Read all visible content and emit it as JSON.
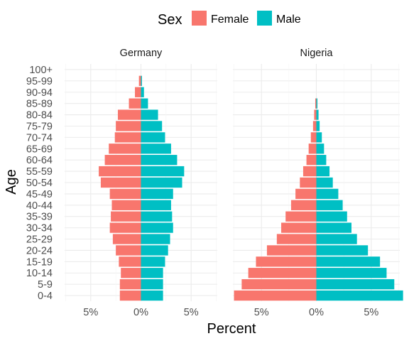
{
  "chart_data": {
    "type": "bar",
    "orientation": "horizontal",
    "chart_style": "population-pyramid",
    "xlabel": "Percent",
    "ylabel": "Age",
    "legend": {
      "title": "Sex",
      "position": "top",
      "entries": [
        {
          "name": "Female",
          "color": "#F8766D"
        },
        {
          "name": "Male",
          "color": "#00BFC4"
        }
      ]
    },
    "categories": [
      "0-4",
      "5-9",
      "10-14",
      "15-19",
      "20-24",
      "25-29",
      "30-34",
      "35-39",
      "40-44",
      "45-49",
      "50-54",
      "55-59",
      "60-64",
      "65-69",
      "70-74",
      "75-79",
      "80-84",
      "85-89",
      "90-94",
      "95-99",
      "100+"
    ],
    "x_ticks": [
      -5,
      0,
      5
    ],
    "x_tick_labels": [
      "5%",
      "0%",
      "5%"
    ],
    "xlim": [
      -7.6,
      7.6
    ],
    "grid": true,
    "panels": [
      {
        "title": "Germany",
        "series": [
          {
            "name": "Female",
            "values": [
              -2.1,
              -2.1,
              -2.0,
              -2.2,
              -2.5,
              -2.8,
              -3.1,
              -3.0,
              -2.9,
              -3.1,
              -4.0,
              -4.2,
              -3.6,
              -3.2,
              -2.6,
              -2.5,
              -2.3,
              -1.2,
              -0.6,
              -0.2,
              0
            ]
          },
          {
            "name": "Male",
            "values": [
              2.2,
              2.2,
              2.2,
              2.4,
              2.7,
              2.9,
              3.2,
              3.1,
              3.0,
              3.2,
              4.1,
              4.3,
              3.6,
              3.0,
              2.4,
              2.1,
              1.7,
              0.7,
              0.3,
              0.1,
              0
            ]
          }
        ]
      },
      {
        "title": "Nigeria",
        "series": [
          {
            "name": "Female",
            "values": [
              -7.5,
              -6.8,
              -6.2,
              -5.5,
              -4.5,
              -3.6,
              -3.2,
              -2.8,
              -2.3,
              -1.9,
              -1.5,
              -1.2,
              -0.9,
              -0.7,
              -0.5,
              -0.3,
              -0.2,
              -0.1,
              0,
              0,
              0
            ]
          },
          {
            "name": "Male",
            "values": [
              7.9,
              7.1,
              6.4,
              5.8,
              4.7,
              3.7,
              3.2,
              2.8,
              2.4,
              2.0,
              1.5,
              1.2,
              0.9,
              0.7,
              0.5,
              0.3,
              0.2,
              0.1,
              0,
              0,
              0
            ]
          }
        ]
      }
    ]
  }
}
